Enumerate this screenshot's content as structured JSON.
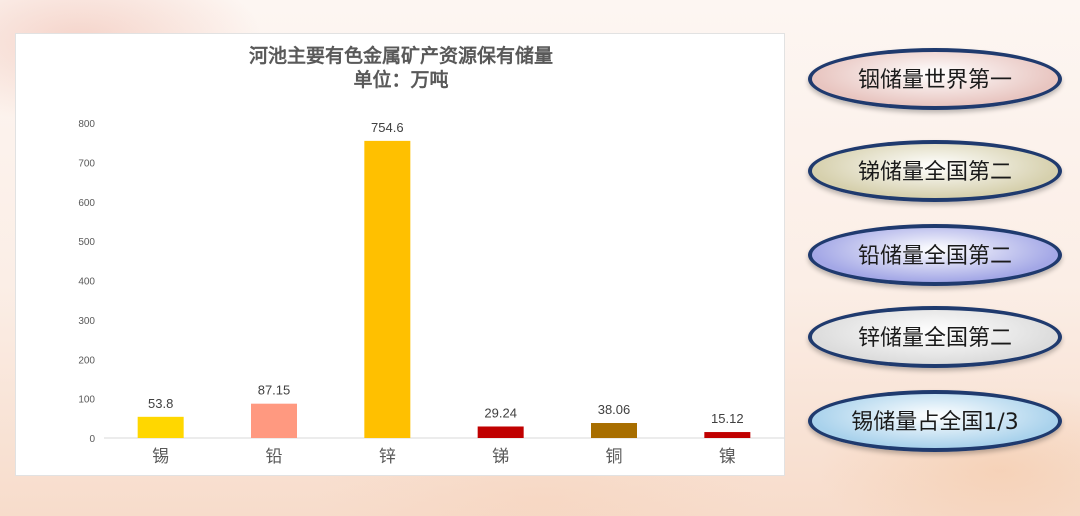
{
  "chart_data": {
    "type": "bar",
    "title": "河池主要有色金属矿产资源保有储量",
    "subtitle": "单位：万吨",
    "categories": [
      "锡",
      "铅",
      "锌",
      "锑",
      "铜",
      "镍"
    ],
    "values": [
      53.8,
      87.15,
      754.6,
      29.24,
      38.06,
      15.12
    ],
    "value_labels": [
      "53.8",
      "87.15",
      "754.6",
      "29.24",
      "38.06",
      "15.12"
    ],
    "bar_colors": [
      "#FFD700",
      "#FF9980",
      "#FFC000",
      "#C00000",
      "#A86E00",
      "#C00000"
    ],
    "y_ticks": [
      0,
      100,
      200,
      300,
      400,
      500,
      600,
      700,
      800
    ],
    "ylim": [
      0,
      800
    ],
    "grid": false,
    "legend": "none"
  },
  "badges": [
    {
      "label": "铟储量世界第一",
      "color": "#e8c5c0"
    },
    {
      "label": "锑储量全国第二",
      "color": "#d6d0ad"
    },
    {
      "label": "铅储量全国第二",
      "color": "#a3a7e6"
    },
    {
      "label": "锌储量全国第二",
      "color": "#dcdcdc"
    },
    {
      "label": "锡储量占全国1/3",
      "color": "#a9d2ec"
    }
  ]
}
